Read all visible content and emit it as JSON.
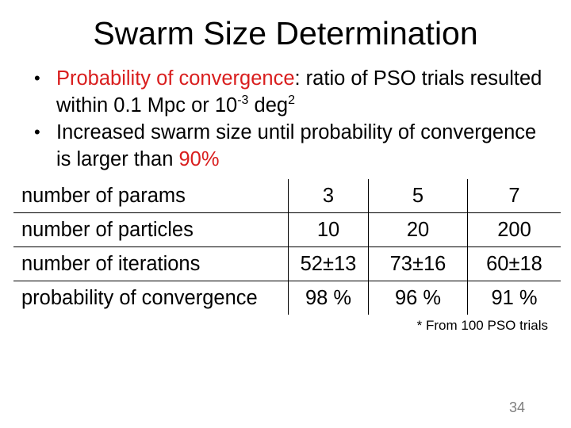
{
  "slide": {
    "title": "Swarm Size Determination",
    "page_number": "34"
  },
  "bullets": [
    {
      "label": "Probability of convergence",
      "text_a": ": ratio of PSO trials resulted within 0.1 Mpc or 10",
      "sup_a": "-3",
      "text_b": " deg",
      "sup_b": "2"
    },
    {
      "text": "Increased swarm size until probability of convergence is larger than ",
      "highlight": "90%"
    }
  ],
  "table": {
    "rows": [
      [
        "number of params",
        "3",
        "5",
        "7"
      ],
      [
        "number of particles",
        "10",
        "20",
        "200"
      ],
      [
        "number of iterations",
        "52±13",
        "73±16",
        "60±18"
      ],
      [
        "probability of convergence",
        "98 %",
        "96 %",
        "91 %"
      ]
    ]
  },
  "footnote": "* From 100 PSO trials",
  "colors": {
    "highlight": "#d91e1e",
    "page_number": "#7f7f7f"
  }
}
